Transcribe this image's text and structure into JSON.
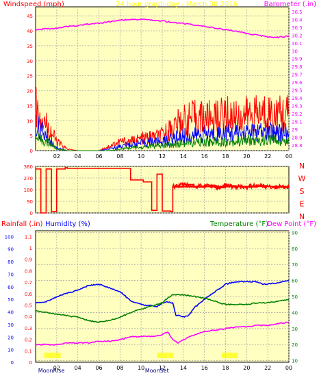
{
  "colors": {
    "background": "#ffffff",
    "plot_bg": "#ffffc0",
    "red": "#ff0000",
    "blue": "#0000ff",
    "green": "#008000",
    "magenta": "#ff00ff",
    "yellow": "#ffff00",
    "ink": "#000000"
  },
  "chart_data": [
    {
      "id": "wind",
      "type": "line",
      "title": "24 hour graph day - March 30 2016",
      "left_label": "Windspeed (mph)",
      "right_label": "Barometer (.in)",
      "x_ticks": [
        "02",
        "04",
        "06",
        "08",
        "10",
        "12",
        "14",
        "16",
        "18",
        "20",
        "22",
        "00"
      ],
      "y_left_ticks": [
        0,
        5,
        10,
        15,
        20,
        25,
        30,
        35,
        40,
        45
      ],
      "ylim_left": [
        0,
        48
      ],
      "y_right_ticks": [
        28.8,
        28.9,
        29.0,
        29.1,
        29.2,
        29.3,
        29.4,
        29.5,
        29.6,
        29.7,
        29.8,
        29.9,
        30.0,
        30.1,
        30.2,
        30.3,
        30.4,
        30.5
      ],
      "ylim_right": [
        28.73,
        30.56
      ],
      "grid": true,
      "series": [
        {
          "role": "wind gust",
          "color": "red",
          "axis": "left",
          "style": "noisy",
          "x": [
            0,
            0.5,
            1,
            1.5,
            2,
            3,
            4,
            5,
            6,
            7,
            8,
            9,
            10,
            11,
            12,
            13,
            14,
            15,
            16,
            17,
            18,
            19,
            20,
            21,
            22,
            23,
            24
          ],
          "y": [
            15,
            12,
            9,
            6,
            3,
            0.5,
            0,
            0,
            0,
            1.5,
            3,
            3,
            4,
            4.5,
            5,
            8,
            10,
            11,
            11,
            11,
            12,
            11,
            12,
            12,
            13,
            12,
            12
          ]
        },
        {
          "role": "wind speed",
          "color": "blue",
          "axis": "left",
          "style": "noisy",
          "x": [
            0,
            0.5,
            1,
            1.5,
            2,
            3,
            4,
            5,
            6,
            7,
            8,
            9,
            10,
            11,
            12,
            13,
            14,
            15,
            16,
            17,
            18,
            19,
            20,
            21,
            22,
            23,
            24
          ],
          "y": [
            8,
            7,
            5,
            3,
            1,
            0,
            0,
            0,
            0,
            0.5,
            1.5,
            2,
            2.5,
            3,
            3,
            4,
            5,
            5,
            5.5,
            5.5,
            6,
            5.5,
            6,
            6,
            6,
            6.5,
            6
          ]
        },
        {
          "role": "average wind",
          "color": "green",
          "axis": "left",
          "style": "noisy",
          "x": [
            0,
            0.5,
            1,
            1.5,
            2,
            3,
            4,
            5,
            6,
            7,
            8,
            9,
            10,
            11,
            12,
            13,
            14,
            15,
            16,
            17,
            18,
            19,
            20,
            21,
            22,
            23,
            24
          ],
          "y": [
            4,
            3.5,
            3,
            2,
            0.5,
            0,
            0,
            0,
            0,
            0,
            0.5,
            1,
            1,
            1.5,
            1.5,
            2,
            2.5,
            2.5,
            3,
            3,
            3,
            3,
            3.5,
            3,
            3.5,
            3.5,
            3
          ]
        },
        {
          "role": "barometer",
          "color": "magenta",
          "axis": "right",
          "style": "smooth",
          "x": [
            0,
            1,
            2,
            3,
            4,
            5,
            6,
            7,
            8,
            9,
            10,
            11,
            12,
            13,
            14,
            15,
            16,
            17,
            18,
            19,
            20,
            21,
            22,
            23,
            24
          ],
          "y": [
            30.27,
            30.28,
            30.29,
            30.31,
            30.32,
            30.34,
            30.35,
            30.37,
            30.39,
            30.4,
            30.4,
            30.39,
            30.38,
            30.36,
            30.35,
            30.33,
            30.31,
            30.29,
            30.27,
            30.25,
            30.22,
            30.2,
            30.18,
            30.17,
            30.19
          ]
        }
      ]
    },
    {
      "id": "direction",
      "type": "line",
      "x_ticks": [],
      "y_left_ticks": [
        0,
        90,
        180,
        270,
        360
      ],
      "ylim_left": [
        0,
        360
      ],
      "right_labels": [
        "N",
        "W",
        "S",
        "E",
        "N"
      ],
      "grid": true,
      "series": [
        {
          "role": "wind direction",
          "color": "red",
          "axis": "left",
          "style": "step",
          "x": [
            0,
            0.5,
            1,
            1.5,
            2,
            2.8,
            3,
            4,
            5,
            6,
            7,
            8,
            9,
            9.8,
            10.2,
            11,
            11.5,
            12,
            12.8,
            13,
            14,
            15,
            16,
            17,
            18,
            19,
            20,
            21,
            22,
            23,
            24
          ],
          "y": [
            340,
            0,
            340,
            10,
            340,
            350,
            345,
            345,
            345,
            345,
            345,
            345,
            255,
            255,
            240,
            20,
            300,
            15,
            10,
            200,
            220,
            200,
            215,
            195,
            210,
            205,
            200,
            210,
            205,
            200,
            205
          ]
        }
      ]
    },
    {
      "id": "temp",
      "type": "line",
      "left_label_1": "Rainfall (.in)",
      "left_label_2": "Humidity (%)",
      "right_label_1": "Temperature (°F)",
      "right_label_2": "Dew Point (°F)",
      "x_ticks": [
        "02",
        "04",
        "06",
        "08",
        "10",
        "12",
        "14",
        "16",
        "18",
        "20",
        "22",
        "00"
      ],
      "y_rain_ticks": [
        0,
        0.1,
        0.2,
        0.3,
        0.4,
        0.5,
        0.6,
        0.7,
        0.8,
        0.9,
        1,
        1.1
      ],
      "ylim_rain": [
        0,
        1.15
      ],
      "y_hum_ticks": [
        0,
        10,
        20,
        30,
        40,
        50,
        60,
        70,
        80,
        90,
        100
      ],
      "ylim_hum": [
        0,
        104.5
      ],
      "y_temp_ticks": [
        10,
        20,
        30,
        40,
        50,
        60,
        70,
        80,
        90
      ],
      "ylim_temp": [
        9,
        91
      ],
      "grid": true,
      "annotations": [
        {
          "text": "MoonRise",
          "x_hour": 1.5
        },
        {
          "text": "MoonSet",
          "x_hour": 11.5
        }
      ],
      "series": [
        {
          "role": "humidity",
          "color": "blue",
          "axis": "hum",
          "style": "smooth",
          "x": [
            0,
            1,
            2,
            3,
            4,
            5,
            6,
            7,
            8,
            9,
            9.5,
            10,
            10.5,
            11,
            11.5,
            12,
            12.5,
            13,
            13.3,
            13.6,
            14,
            14.5,
            15,
            16,
            16.5,
            17,
            17.5,
            18,
            18.5,
            19,
            20,
            21,
            21.5,
            22,
            23,
            24
          ],
          "y": [
            47,
            48,
            52,
            55,
            57,
            61,
            62,
            59,
            56,
            49,
            47,
            46,
            45,
            45,
            44,
            47,
            48,
            47,
            37,
            37,
            36,
            37,
            43,
            50,
            53,
            56,
            59,
            62,
            63,
            64,
            64,
            64,
            62,
            62,
            63,
            65
          ]
        },
        {
          "role": "temperature",
          "color": "green",
          "axis": "temp",
          "style": "smooth",
          "x": [
            0,
            1,
            2,
            3,
            4,
            5,
            6,
            7,
            8,
            9,
            10,
            11,
            12,
            12.5,
            13,
            14,
            15,
            16,
            17,
            18,
            19,
            20,
            21,
            22,
            23,
            24
          ],
          "y": [
            41,
            40,
            39,
            38,
            37,
            35,
            34,
            35,
            37,
            40,
            42,
            44,
            46,
            49,
            51,
            51,
            50,
            49,
            47,
            45,
            45,
            45,
            46,
            46,
            47,
            48
          ]
        },
        {
          "role": "dew point",
          "color": "magenta",
          "axis": "temp",
          "style": "smooth",
          "x": [
            0,
            1,
            2,
            3,
            4,
            5,
            6,
            7,
            8,
            9,
            10,
            11,
            12,
            12.5,
            13,
            13.5,
            14,
            15,
            16,
            17,
            18,
            19,
            20,
            21,
            22,
            23,
            24
          ],
          "y": [
            20,
            20,
            20,
            21,
            21,
            21,
            22,
            22,
            23,
            25,
            25,
            25,
            26,
            28,
            23,
            21,
            23,
            26,
            28,
            29,
            30,
            31,
            31,
            32,
            32,
            33,
            34
          ]
        }
      ]
    }
  ]
}
